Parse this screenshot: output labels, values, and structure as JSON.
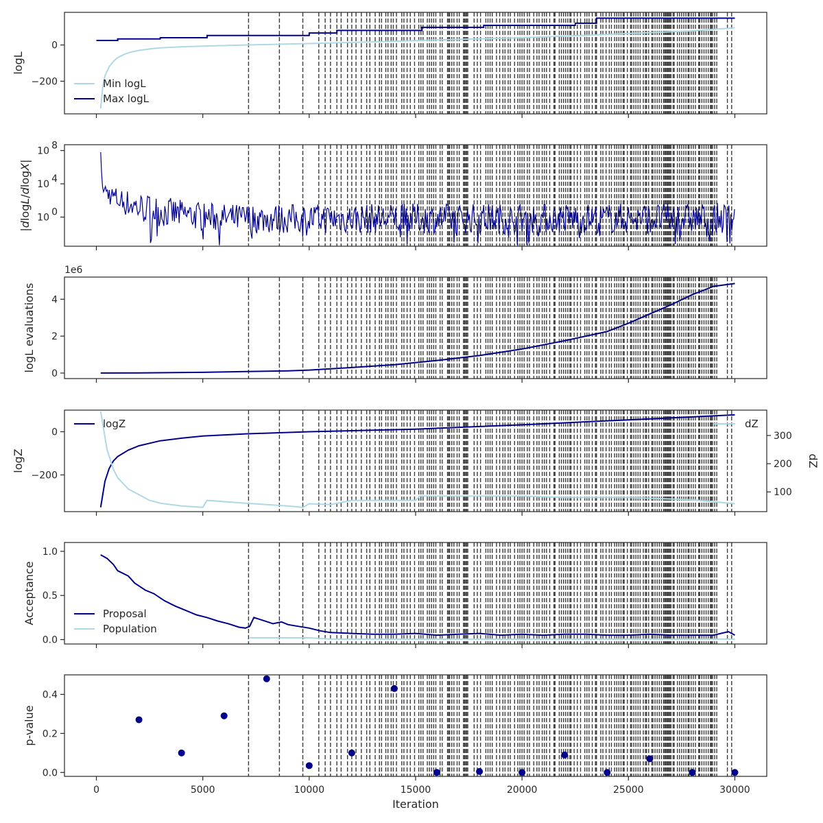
{
  "chart_data": [
    {
      "type": "line",
      "ylabel": "logL",
      "xlim": [
        -1500,
        31500
      ],
      "ylim": [
        -380,
        180
      ],
      "yticks": [
        0,
        -200
      ],
      "yticklabels": [
        "0",
        "−200"
      ],
      "legend": {
        "placement": "lower-left",
        "entries": [
          "Min logL",
          "Max logL"
        ]
      },
      "series": [
        {
          "name": "Min logL",
          "color": "#add8e6",
          "x": [
            200,
            300,
            400,
            600,
            800,
            1000,
            1300,
            1600,
            2000,
            2500,
            3000,
            4000,
            5000,
            7000,
            10000,
            13000,
            16000,
            20000,
            24000,
            28000,
            30000
          ],
          "y": [
            -350,
            -230,
            -170,
            -120,
            -90,
            -70,
            -52,
            -40,
            -30,
            -22,
            -16,
            -10,
            -6,
            0,
            8,
            17,
            28,
            40,
            58,
            78,
            95
          ]
        },
        {
          "name": "Max logL",
          "color": "#00008b",
          "x": [
            0,
            1000,
            1001,
            3000,
            3001,
            5200,
            5201,
            10000,
            10001,
            11300,
            11301,
            15300,
            15301,
            18200,
            18201,
            22500,
            22501,
            23500,
            23501,
            30000
          ],
          "y": [
            25,
            25,
            33,
            33,
            40,
            40,
            52,
            52,
            66,
            66,
            80,
            80,
            97,
            97,
            108,
            108,
            120,
            120,
            148,
            148
          ]
        }
      ]
    },
    {
      "type": "line",
      "ylabel": "|dlogL/dlogX|",
      "yscale": "log",
      "ylim_log10": [
        -3.5,
        8.7
      ],
      "yticks_log10": [
        8,
        4,
        0
      ],
      "yticklabels": [
        "10",
        "10",
        "10"
      ],
      "yticklabel_exponents": [
        "8",
        "4",
        "0"
      ],
      "series": [
        {
          "name": "",
          "color": "#00008b",
          "upper_envelope": {
            "x": [
              200,
              230,
              260,
              300,
              400,
              600,
              1000,
              2000,
              3000,
              4000,
              5000,
              6000,
              30000
            ],
            "log10y": [
              7.8,
              5.8,
              5.0,
              4.6,
              4.3,
              4.0,
              3.6,
              3.0,
              2.5,
              2.1,
              1.8,
              1.6,
              1.7
            ]
          },
          "lower_envelope": {
            "x": [
              200,
              230,
              260,
              300,
              400,
              600,
              1000,
              2000,
              3000,
              5000,
              7000,
              30000
            ],
            "log10y": [
              7.8,
              5.0,
              4.0,
              3.0,
              2.0,
              1.5,
              0.6,
              -0.7,
              -1.2,
              -1.7,
              -2.0,
              -2.0
            ]
          },
          "low_spikes_log10": -3.4
        }
      ]
    },
    {
      "type": "line",
      "ylabel": "logL evaluations",
      "offset_text": "1e6",
      "ylim": [
        -0.3,
        5.2
      ],
      "yticks": [
        0,
        2,
        4
      ],
      "yticklabels": [
        "0",
        "2",
        "4"
      ],
      "series": [
        {
          "name": "",
          "color": "#00008b",
          "x": [
            200,
            2000,
            5000,
            7000,
            9000,
            10000,
            12000,
            14000,
            16000,
            18000,
            20000,
            22000,
            24000,
            25000,
            26000,
            27000,
            28000,
            29000,
            30000
          ],
          "y": [
            0.0,
            0.01,
            0.04,
            0.08,
            0.12,
            0.16,
            0.3,
            0.45,
            0.68,
            0.95,
            1.3,
            1.75,
            2.25,
            2.7,
            3.2,
            3.7,
            4.25,
            4.7,
            4.85
          ]
        }
      ]
    },
    {
      "type": "line",
      "ylabel": "logZ",
      "ylabel_right": "dZ",
      "ylim": [
        -370,
        100
      ],
      "yticks": [
        0,
        -200
      ],
      "yticklabels": [
        "0",
        "−200"
      ],
      "ylim_right": [
        30,
        390
      ],
      "yticks_right": [
        100,
        200,
        300
      ],
      "yticklabels_right": [
        "100",
        "200",
        "300"
      ],
      "legend": {
        "placement": "upper-left",
        "entries": [
          "logZ"
        ]
      },
      "legend_right": {
        "placement": "upper-right",
        "entries": [
          "dZ"
        ]
      },
      "series": [
        {
          "name": "logZ",
          "color": "#00008b",
          "axis": "left",
          "x": [
            200,
            400,
            600,
            800,
            1000,
            1500,
            2000,
            3000,
            4000,
            5000,
            7000,
            10000,
            15000,
            20000,
            25000,
            30000
          ],
          "y": [
            -350,
            -230,
            -170,
            -135,
            -115,
            -85,
            -65,
            -42,
            -30,
            -20,
            -10,
            0,
            12,
            32,
            55,
            78
          ]
        },
        {
          "name": "dZ",
          "color": "#add8e6",
          "axis": "right",
          "x": [
            200,
            500,
            800,
            1000,
            1500,
            2000,
            2500,
            3000,
            4000,
            5000,
            5200,
            7000,
            9000,
            9700,
            10000,
            11000,
            12000,
            15000,
            15200,
            18000,
            20000,
            22000,
            25000,
            28000,
            30000
          ],
          "y": [
            385,
            250,
            180,
            150,
            110,
            90,
            70,
            60,
            50,
            45,
            70,
            60,
            50,
            45,
            58,
            55,
            70,
            70,
            85,
            85,
            85,
            80,
            80,
            72,
            58
          ]
        }
      ]
    },
    {
      "type": "line",
      "ylabel": "Acceptance",
      "ylim": [
        -0.05,
        1.1
      ],
      "yticks": [
        0.0,
        0.5,
        1.0
      ],
      "yticklabels": [
        "0.0",
        "0.5",
        "1.0"
      ],
      "legend": {
        "placement": "lower-left",
        "entries": [
          "Proposal",
          "Population"
        ]
      },
      "series": [
        {
          "name": "Proposal",
          "color": "#00008b",
          "x": [
            200,
            500,
            800,
            1000,
            1500,
            1800,
            2300,
            2700,
            3200,
            3700,
            4200,
            4700,
            5200,
            5700,
            6200,
            6700,
            7000,
            7200,
            7400,
            7800,
            8300,
            8700,
            9000,
            9500,
            10000,
            10500,
            11000,
            12000,
            13000,
            14000,
            15000,
            16000,
            17000,
            18000,
            19000,
            20000,
            21000,
            22000,
            23000,
            24000,
            25000,
            26000,
            27000,
            28000,
            29000,
            29700,
            30000
          ],
          "y": [
            0.96,
            0.92,
            0.85,
            0.78,
            0.72,
            0.64,
            0.56,
            0.52,
            0.44,
            0.38,
            0.33,
            0.28,
            0.25,
            0.21,
            0.18,
            0.14,
            0.13,
            0.15,
            0.25,
            0.22,
            0.18,
            0.2,
            0.17,
            0.15,
            0.13,
            0.1,
            0.08,
            0.07,
            0.06,
            0.06,
            0.07,
            0.05,
            0.06,
            0.07,
            0.05,
            0.06,
            0.05,
            0.06,
            0.06,
            0.05,
            0.05,
            0.06,
            0.05,
            0.05,
            0.05,
            0.09,
            0.05
          ]
        },
        {
          "name": "Population",
          "color": "#add8e6",
          "x": [
            7200,
            10000,
            11000,
            30000
          ],
          "y": [
            0.02,
            0.02,
            0.005,
            0.005
          ]
        }
      ]
    },
    {
      "type": "scatter",
      "ylabel": "p-value",
      "xlabel": "Iteration",
      "ylim": [
        -0.02,
        0.5
      ],
      "yticks": [
        0.0,
        0.2,
        0.4
      ],
      "yticklabels": [
        "0.0",
        "0.2",
        "0.4"
      ],
      "xticks": [
        0,
        5000,
        10000,
        15000,
        20000,
        25000,
        30000
      ],
      "xticklabels": [
        "0",
        "5000",
        "10000",
        "15000",
        "20000",
        "25000",
        "30000"
      ],
      "series": [
        {
          "name": "",
          "color": "#00008b",
          "x": [
            2000,
            4000,
            6000,
            8000,
            10000,
            12000,
            14000,
            16000,
            18000,
            20000,
            22000,
            24000,
            26000,
            28000,
            30000
          ],
          "y": [
            0.27,
            0.1,
            0.29,
            0.48,
            0.035,
            0.1,
            0.43,
            0.0,
            0.005,
            0.0,
            0.09,
            0.0,
            0.07,
            0.0,
            0.0
          ]
        }
      ]
    }
  ],
  "vlines_x": [
    7150,
    8600,
    9700,
    10450,
    10750,
    11000,
    11300,
    11500,
    11800,
    12000,
    12200,
    12450,
    12700,
    12850,
    13100,
    13300,
    13400,
    13600,
    13700,
    13850,
    13950,
    14100,
    14350,
    14450,
    14600,
    14750,
    14950,
    15150,
    15250,
    15350,
    15550,
    15650,
    15750,
    15850,
    15950,
    16150,
    16250,
    16500,
    16550,
    16600,
    16700,
    16800,
    16950,
    17050,
    17250,
    17300,
    17350,
    17400,
    17450,
    17750,
    17900,
    18050,
    18300,
    18400,
    18500,
    18600,
    18800,
    18950,
    19100,
    19200,
    19350,
    19450,
    19650,
    19800,
    19900,
    20000,
    20100,
    20250,
    20350,
    20550,
    20700,
    20800,
    20950,
    21050,
    21150,
    21300,
    21500,
    21550,
    21750,
    21850,
    21950,
    22050,
    22150,
    22250,
    22300,
    22450,
    22600,
    22750,
    22950,
    23050,
    23150,
    23300,
    23450,
    23500,
    23700,
    23800,
    23950,
    24100,
    24200,
    24350,
    24450,
    24550,
    24650,
    24750,
    24800,
    24950,
    25100,
    25150,
    25250,
    25350,
    25450,
    25550,
    25700,
    25800,
    25850,
    25950,
    26100,
    26150,
    26250,
    26350,
    26450,
    26550,
    26650,
    26700,
    26750,
    26800,
    26850,
    26900,
    26950,
    27000,
    27100,
    27150,
    27300,
    27400,
    27500,
    27600,
    27700,
    27800,
    27850,
    27950,
    28050,
    28150,
    28300,
    28350,
    28450,
    28550,
    28650,
    28750,
    28850,
    28900,
    28950,
    29050,
    29150,
    29650,
    29850
  ]
}
